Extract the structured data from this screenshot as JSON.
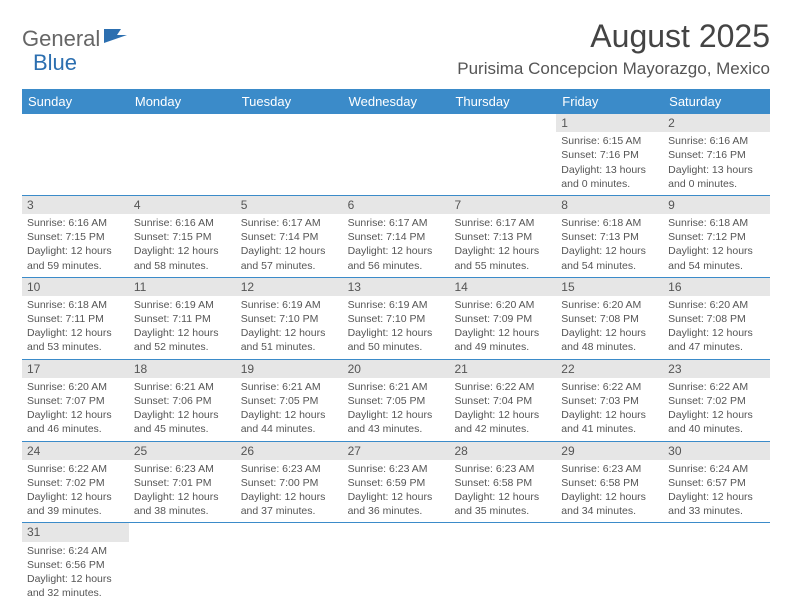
{
  "logo": {
    "part1": "General",
    "part2": "Blue"
  },
  "title": "August 2025",
  "location": "Purisima Concepcion Mayorazgo, Mexico",
  "colors": {
    "header_bg": "#3b8bc9",
    "header_text": "#ffffff",
    "daynum_bg": "#e6e6e6",
    "text": "#555555",
    "rule": "#3b8bc9",
    "logo_blue": "#2c6fb0"
  },
  "weekdays": [
    "Sunday",
    "Monday",
    "Tuesday",
    "Wednesday",
    "Thursday",
    "Friday",
    "Saturday"
  ],
  "weeks": [
    [
      {
        "blank": true
      },
      {
        "blank": true
      },
      {
        "blank": true
      },
      {
        "blank": true
      },
      {
        "blank": true
      },
      {
        "day": "1",
        "sunrise": "Sunrise: 6:15 AM",
        "sunset": "Sunset: 7:16 PM",
        "daylight": "Daylight: 13 hours and 0 minutes."
      },
      {
        "day": "2",
        "sunrise": "Sunrise: 6:16 AM",
        "sunset": "Sunset: 7:16 PM",
        "daylight": "Daylight: 13 hours and 0 minutes."
      }
    ],
    [
      {
        "day": "3",
        "sunrise": "Sunrise: 6:16 AM",
        "sunset": "Sunset: 7:15 PM",
        "daylight": "Daylight: 12 hours and 59 minutes."
      },
      {
        "day": "4",
        "sunrise": "Sunrise: 6:16 AM",
        "sunset": "Sunset: 7:15 PM",
        "daylight": "Daylight: 12 hours and 58 minutes."
      },
      {
        "day": "5",
        "sunrise": "Sunrise: 6:17 AM",
        "sunset": "Sunset: 7:14 PM",
        "daylight": "Daylight: 12 hours and 57 minutes."
      },
      {
        "day": "6",
        "sunrise": "Sunrise: 6:17 AM",
        "sunset": "Sunset: 7:14 PM",
        "daylight": "Daylight: 12 hours and 56 minutes."
      },
      {
        "day": "7",
        "sunrise": "Sunrise: 6:17 AM",
        "sunset": "Sunset: 7:13 PM",
        "daylight": "Daylight: 12 hours and 55 minutes."
      },
      {
        "day": "8",
        "sunrise": "Sunrise: 6:18 AM",
        "sunset": "Sunset: 7:13 PM",
        "daylight": "Daylight: 12 hours and 54 minutes."
      },
      {
        "day": "9",
        "sunrise": "Sunrise: 6:18 AM",
        "sunset": "Sunset: 7:12 PM",
        "daylight": "Daylight: 12 hours and 54 minutes."
      }
    ],
    [
      {
        "day": "10",
        "sunrise": "Sunrise: 6:18 AM",
        "sunset": "Sunset: 7:11 PM",
        "daylight": "Daylight: 12 hours and 53 minutes."
      },
      {
        "day": "11",
        "sunrise": "Sunrise: 6:19 AM",
        "sunset": "Sunset: 7:11 PM",
        "daylight": "Daylight: 12 hours and 52 minutes."
      },
      {
        "day": "12",
        "sunrise": "Sunrise: 6:19 AM",
        "sunset": "Sunset: 7:10 PM",
        "daylight": "Daylight: 12 hours and 51 minutes."
      },
      {
        "day": "13",
        "sunrise": "Sunrise: 6:19 AM",
        "sunset": "Sunset: 7:10 PM",
        "daylight": "Daylight: 12 hours and 50 minutes."
      },
      {
        "day": "14",
        "sunrise": "Sunrise: 6:20 AM",
        "sunset": "Sunset: 7:09 PM",
        "daylight": "Daylight: 12 hours and 49 minutes."
      },
      {
        "day": "15",
        "sunrise": "Sunrise: 6:20 AM",
        "sunset": "Sunset: 7:08 PM",
        "daylight": "Daylight: 12 hours and 48 minutes."
      },
      {
        "day": "16",
        "sunrise": "Sunrise: 6:20 AM",
        "sunset": "Sunset: 7:08 PM",
        "daylight": "Daylight: 12 hours and 47 minutes."
      }
    ],
    [
      {
        "day": "17",
        "sunrise": "Sunrise: 6:20 AM",
        "sunset": "Sunset: 7:07 PM",
        "daylight": "Daylight: 12 hours and 46 minutes."
      },
      {
        "day": "18",
        "sunrise": "Sunrise: 6:21 AM",
        "sunset": "Sunset: 7:06 PM",
        "daylight": "Daylight: 12 hours and 45 minutes."
      },
      {
        "day": "19",
        "sunrise": "Sunrise: 6:21 AM",
        "sunset": "Sunset: 7:05 PM",
        "daylight": "Daylight: 12 hours and 44 minutes."
      },
      {
        "day": "20",
        "sunrise": "Sunrise: 6:21 AM",
        "sunset": "Sunset: 7:05 PM",
        "daylight": "Daylight: 12 hours and 43 minutes."
      },
      {
        "day": "21",
        "sunrise": "Sunrise: 6:22 AM",
        "sunset": "Sunset: 7:04 PM",
        "daylight": "Daylight: 12 hours and 42 minutes."
      },
      {
        "day": "22",
        "sunrise": "Sunrise: 6:22 AM",
        "sunset": "Sunset: 7:03 PM",
        "daylight": "Daylight: 12 hours and 41 minutes."
      },
      {
        "day": "23",
        "sunrise": "Sunrise: 6:22 AM",
        "sunset": "Sunset: 7:02 PM",
        "daylight": "Daylight: 12 hours and 40 minutes."
      }
    ],
    [
      {
        "day": "24",
        "sunrise": "Sunrise: 6:22 AM",
        "sunset": "Sunset: 7:02 PM",
        "daylight": "Daylight: 12 hours and 39 minutes."
      },
      {
        "day": "25",
        "sunrise": "Sunrise: 6:23 AM",
        "sunset": "Sunset: 7:01 PM",
        "daylight": "Daylight: 12 hours and 38 minutes."
      },
      {
        "day": "26",
        "sunrise": "Sunrise: 6:23 AM",
        "sunset": "Sunset: 7:00 PM",
        "daylight": "Daylight: 12 hours and 37 minutes."
      },
      {
        "day": "27",
        "sunrise": "Sunrise: 6:23 AM",
        "sunset": "Sunset: 6:59 PM",
        "daylight": "Daylight: 12 hours and 36 minutes."
      },
      {
        "day": "28",
        "sunrise": "Sunrise: 6:23 AM",
        "sunset": "Sunset: 6:58 PM",
        "daylight": "Daylight: 12 hours and 35 minutes."
      },
      {
        "day": "29",
        "sunrise": "Sunrise: 6:23 AM",
        "sunset": "Sunset: 6:58 PM",
        "daylight": "Daylight: 12 hours and 34 minutes."
      },
      {
        "day": "30",
        "sunrise": "Sunrise: 6:24 AM",
        "sunset": "Sunset: 6:57 PM",
        "daylight": "Daylight: 12 hours and 33 minutes."
      }
    ],
    [
      {
        "day": "31",
        "sunrise": "Sunrise: 6:24 AM",
        "sunset": "Sunset: 6:56 PM",
        "daylight": "Daylight: 12 hours and 32 minutes."
      },
      {
        "blank": true
      },
      {
        "blank": true
      },
      {
        "blank": true
      },
      {
        "blank": true
      },
      {
        "blank": true
      },
      {
        "blank": true
      }
    ]
  ]
}
